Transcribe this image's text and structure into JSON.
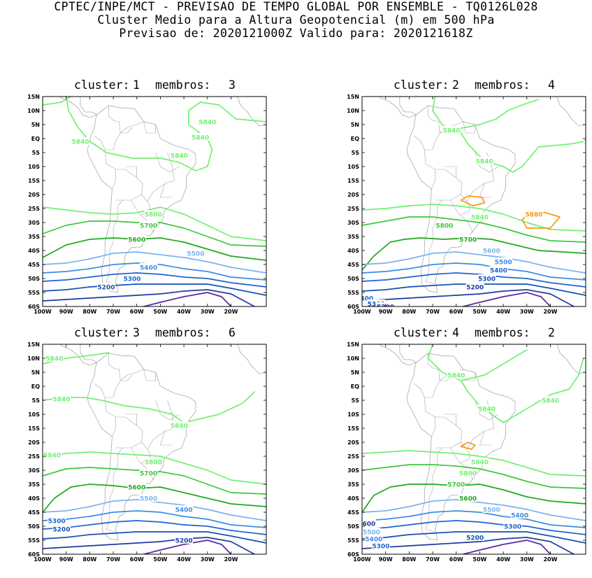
{
  "header": {
    "line1": "CPTEC/INPE/MCT - PREVISAO DE TEMPO GLOBAL POR ENSEMBLE - TQ0126L028",
    "line2": "Cluster Medio para a Altura Geopotencial (m) em 500 hPa",
    "line3": "Previsao de: 2020121000Z   Valido para: 2020121618Z"
  },
  "axes": {
    "lat_labels": [
      "15N",
      "10N",
      "5N",
      "EQ",
      "5S",
      "10S",
      "15S",
      "20S",
      "25S",
      "30S",
      "35S",
      "40S",
      "45S",
      "50S",
      "55S",
      "60S"
    ],
    "lon_labels": [
      "100W",
      "90W",
      "80W",
      "70W",
      "60W",
      "50W",
      "40W",
      "30W",
      "20W"
    ]
  },
  "colors": {
    "c5840": "#72f072",
    "c5800": "#3cc83c",
    "c5700": "#20a820",
    "c5600": "#78b4f0",
    "c5500": "#3c8ce6",
    "c5400": "#1e64d2",
    "c5300": "#1450b4",
    "c5200": "#1e3c9e",
    "c5100": "#5a28a0",
    "c5880": "#f59a14",
    "land": "#a8a8a8"
  },
  "clusters": [
    {
      "label": "cluster:",
      "number": "1",
      "members_label": "membros:",
      "members": "3",
      "contour_labels": [
        "5840",
        "5840",
        "5840",
        "5840",
        "5800",
        "5700",
        "5600",
        "5500",
        "5400",
        "5300",
        "5200"
      ]
    },
    {
      "label": "cluster:",
      "number": "2",
      "members_label": "membros:",
      "members": "4",
      "contour_labels": [
        "5840",
        "5840",
        "5840",
        "5840",
        "5880",
        "5800",
        "5700",
        "5600",
        "5500",
        "5400",
        "5300",
        "5200",
        "400",
        "5300",
        "5200"
      ]
    },
    {
      "label": "cluster:",
      "number": "3",
      "members_label": "membros:",
      "members": "6",
      "contour_labels": [
        "5840",
        "5840",
        "5840",
        "5840",
        "5800",
        "5700",
        "5600",
        "5500",
        "5400",
        "5300",
        "5200",
        "5200"
      ]
    },
    {
      "label": "cluster:",
      "number": "4",
      "members_label": "membros:",
      "members": "2",
      "contour_labels": [
        "5840",
        "5840",
        "5840",
        "5840",
        "5800",
        "5700",
        "5600",
        "5500",
        "5400",
        "5300",
        "5200",
        "5600",
        "5500",
        "5400",
        "5300"
      ]
    }
  ]
}
